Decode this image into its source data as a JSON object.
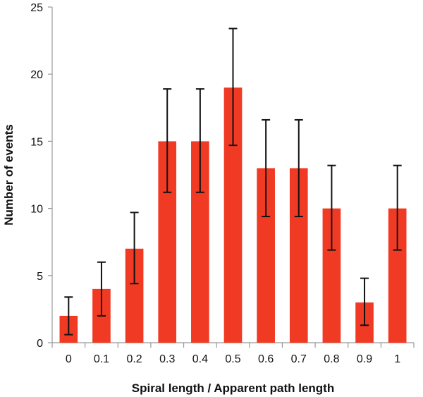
{
  "chart_data": {
    "type": "bar",
    "title": "",
    "xlabel": "Spiral length / Apparent path length",
    "ylabel": "Number of events",
    "categories": [
      "0",
      "0.1",
      "0.2",
      "0.3",
      "0.4",
      "0.5",
      "0.6",
      "0.7",
      "0.8",
      "0.9",
      "1"
    ],
    "values": [
      2,
      4,
      7,
      15,
      15,
      19,
      13,
      13,
      10,
      3,
      10
    ],
    "error_low": [
      0.6,
      2.0,
      4.4,
      11.2,
      11.2,
      14.7,
      9.4,
      9.4,
      6.9,
      1.3,
      6.9
    ],
    "error_high": [
      3.4,
      6.0,
      9.7,
      18.9,
      18.9,
      23.4,
      16.6,
      16.6,
      13.2,
      4.8,
      13.2
    ],
    "ylim": [
      0,
      25
    ],
    "yticks": [
      0,
      5,
      10,
      15,
      20,
      25
    ],
    "grid": false,
    "colors": {
      "bar": "#f03a24",
      "error_bar": "#111111",
      "axis": "#999999"
    }
  }
}
